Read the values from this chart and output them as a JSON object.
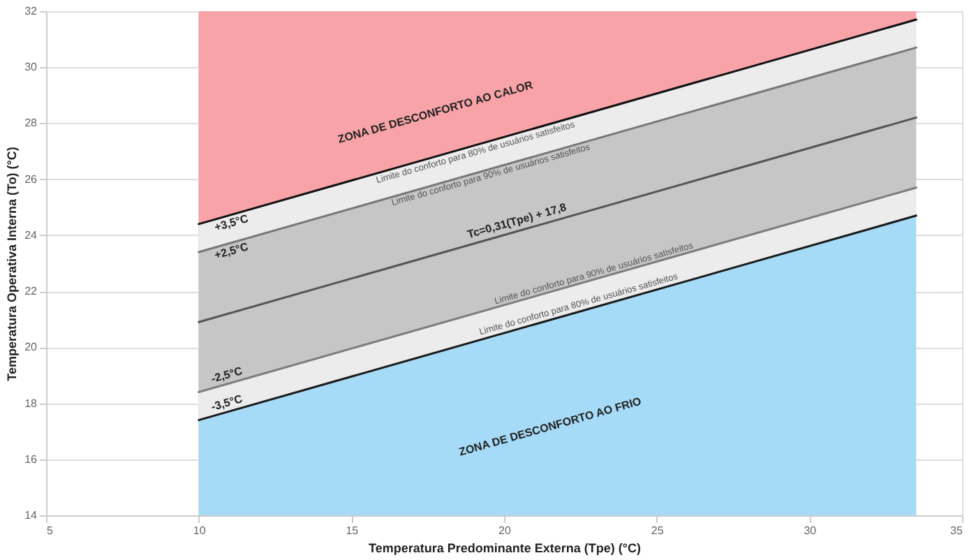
{
  "chart_data": {
    "type": "line",
    "xlabel": "Temperatura Predominante Externa (Tpe) (°C)",
    "ylabel": "Temperatura Operativa Interna (To) (°C)",
    "xlim": [
      5,
      35
    ],
    "xticks": [
      5,
      10,
      15,
      20,
      25,
      30,
      35
    ],
    "ylim": [
      14,
      32
    ],
    "yticks": [
      14,
      16,
      18,
      20,
      22,
      24,
      26,
      28,
      30,
      32
    ],
    "grid": true,
    "x": [
      10,
      33.5
    ],
    "colors": [
      "#f7a3a8",
      "#ececec",
      "#c6c6c6",
      "#c6c6c6",
      "#ececec",
      "#a5dbf7"
    ],
    "series": [
      {
        "values": [
          24.4,
          31.7
        ],
        "color": "#111111"
      },
      {
        "values": [
          23.4,
          30.7
        ],
        "color": "#777777"
      },
      {
        "values": [
          20.9,
          28.2
        ],
        "color": "#555555"
      },
      {
        "values": [
          18.4,
          25.7
        ],
        "color": "#7d7d7d"
      },
      {
        "values": [
          17.4,
          24.7
        ],
        "color": "#1a1a1a"
      }
    ],
    "annotations": [
      "ZONA DE DESCONFORTO AO CALOR",
      "ZONA DE DESCONFORTO AO FRIO",
      {
        "text": "Tc=0,31(Tpe) + 17,8",
        "x": 20.5,
        "y": 24.2
      },
      {
        "text": "Limite do conforto para 80% de usuários satisfeitos",
        "x": 19,
        "y": 27.2
      },
      {
        "text": "Limite do conforto para 90% de usuários satisfeitos",
        "x": 19.5,
        "y": 26.4
      },
      {
        "text": "Limite do conforto para 90% de usuários satisfeitos",
        "x": 23,
        "y": 22.4
      },
      {
        "text": "Limite do conforto para 80% de usuários satisfeitos",
        "x": 22.5,
        "y": 21.3
      },
      {
        "text": "+3,5°C",
        "x": 11,
        "y": 24.7
      },
      {
        "text": "+2,5°C",
        "x": 11,
        "y": 23.7
      },
      {
        "text": "-2,5°C",
        "x": 11,
        "y": 18.7
      },
      {
        "text": "-3,5°C",
        "x": 11,
        "y": 17.7
      }
    ]
  }
}
